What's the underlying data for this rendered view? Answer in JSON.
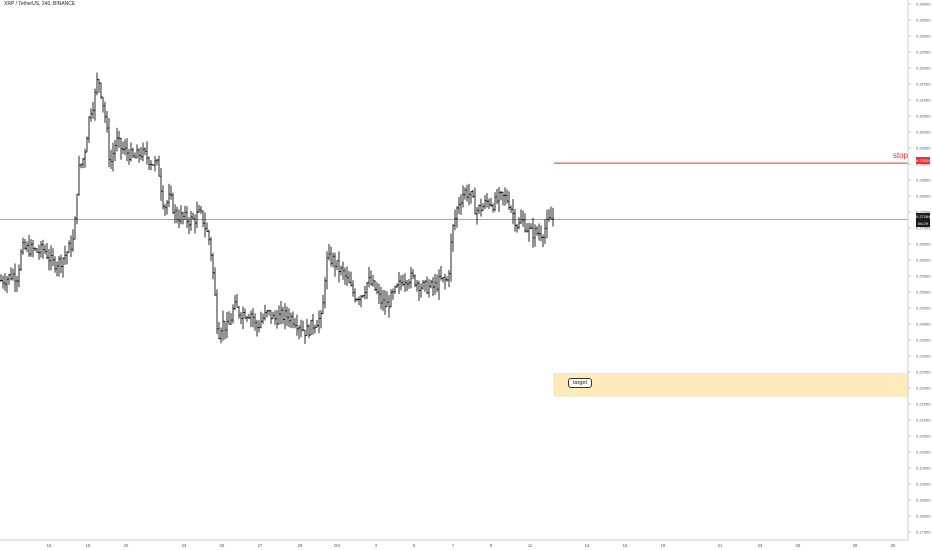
{
  "header": {
    "title": "XRP / TetherUS, 240, BINANCE"
  },
  "chart_data": {
    "type": "ohlc",
    "ylim": [
      0.1725,
      0.3405
    ],
    "y_axis_ticks": [
      "0.34000",
      "0.33500",
      "0.33000",
      "0.32500",
      "0.32000",
      "0.31500",
      "0.31000",
      "0.30500",
      "0.30000",
      "0.29500",
      "0.29000",
      "0.28500",
      "0.28000",
      "0.27500",
      "0.27000",
      "0.26500",
      "0.26000",
      "0.25500",
      "0.25000",
      "0.24500",
      "0.24000",
      "0.23500",
      "0.23000",
      "0.22500",
      "0.22000",
      "0.21500",
      "0.21000",
      "0.20500",
      "0.20000",
      "0.19500",
      "0.19000",
      "0.18500",
      "0.18000",
      "0.17500"
    ],
    "x_axis_ticks": [
      "16",
      "18",
      "20",
      "23",
      "25",
      "27",
      "29",
      "Oct",
      "3",
      "5",
      "7",
      "9",
      "11",
      "14",
      "16",
      "18",
      "21",
      "23",
      "25",
      "28",
      "30"
    ],
    "price_path": [
      [
        0,
        0.2535
      ],
      [
        8,
        0.2545
      ],
      [
        12,
        0.2555
      ],
      [
        17,
        0.255
      ],
      [
        22,
        0.2635
      ],
      [
        30,
        0.2635
      ],
      [
        38,
        0.2625
      ],
      [
        44,
        0.2635
      ],
      [
        52,
        0.259
      ],
      [
        60,
        0.2595
      ],
      [
        67,
        0.2625
      ],
      [
        74,
        0.2665
      ],
      [
        78,
        0.2875
      ],
      [
        84,
        0.2925
      ],
      [
        90,
        0.3065
      ],
      [
        94,
        0.3095
      ],
      [
        98,
        0.3175
      ],
      [
        102,
        0.311
      ],
      [
        106,
        0.303
      ],
      [
        110,
        0.2895
      ],
      [
        116,
        0.2975
      ],
      [
        122,
        0.2945
      ],
      [
        128,
        0.2935
      ],
      [
        134,
        0.2915
      ],
      [
        140,
        0.2935
      ],
      [
        146,
        0.2925
      ],
      [
        152,
        0.2905
      ],
      [
        158,
        0.2895
      ],
      [
        164,
        0.2765
      ],
      [
        170,
        0.2795
      ],
      [
        176,
        0.2735
      ],
      [
        182,
        0.2735
      ],
      [
        188,
        0.2725
      ],
      [
        194,
        0.2725
      ],
      [
        198,
        0.2745
      ],
      [
        202,
        0.2735
      ],
      [
        206,
        0.2695
      ],
      [
        210,
        0.2655
      ],
      [
        214,
        0.2525
      ],
      [
        218,
        0.2365
      ],
      [
        222,
        0.2405
      ],
      [
        228,
        0.2385
      ],
      [
        234,
        0.2455
      ],
      [
        240,
        0.2435
      ],
      [
        246,
        0.2435
      ],
      [
        252,
        0.2435
      ],
      [
        256,
        0.2385
      ],
      [
        262,
        0.2415
      ],
      [
        268,
        0.2435
      ],
      [
        274,
        0.2415
      ],
      [
        280,
        0.2425
      ],
      [
        288,
        0.2425
      ],
      [
        294,
        0.2415
      ],
      [
        300,
        0.2395
      ],
      [
        306,
        0.2375
      ],
      [
        312,
        0.2395
      ],
      [
        318,
        0.2415
      ],
      [
        322,
        0.2415
      ],
      [
        326,
        0.2595
      ],
      [
        332,
        0.2605
      ],
      [
        338,
        0.2575
      ],
      [
        344,
        0.2555
      ],
      [
        350,
        0.2515
      ],
      [
        356,
        0.2485
      ],
      [
        362,
        0.2495
      ],
      [
        368,
        0.2535
      ],
      [
        374,
        0.2515
      ],
      [
        380,
        0.2475
      ],
      [
        386,
        0.2455
      ],
      [
        392,
        0.2485
      ],
      [
        398,
        0.2515
      ],
      [
        404,
        0.2545
      ],
      [
        410,
        0.2545
      ],
      [
        416,
        0.2535
      ],
      [
        422,
        0.2515
      ],
      [
        428,
        0.2515
      ],
      [
        434,
        0.2515
      ],
      [
        440,
        0.2535
      ],
      [
        448,
        0.2535
      ],
      [
        452,
        0.2685
      ],
      [
        458,
        0.2775
      ],
      [
        464,
        0.2815
      ],
      [
        470,
        0.2805
      ],
      [
        476,
        0.2755
      ],
      [
        482,
        0.2765
      ],
      [
        488,
        0.2785
      ],
      [
        494,
        0.2775
      ],
      [
        500,
        0.2795
      ],
      [
        506,
        0.2795
      ],
      [
        510,
        0.2775
      ],
      [
        514,
        0.2735
      ],
      [
        518,
        0.2705
      ],
      [
        522,
        0.2725
      ],
      [
        526,
        0.2705
      ],
      [
        530,
        0.2685
      ],
      [
        536,
        0.2685
      ],
      [
        542,
        0.2685
      ],
      [
        546,
        0.2705
      ],
      [
        550,
        0.2725
      ],
      [
        554,
        0.2735
      ]
    ],
    "horizontal_lines": [
      {
        "name": "last-price-line",
        "price": 0.27264,
        "color": "#888888"
      },
      {
        "name": "stop-line",
        "price": 0.29029,
        "color": "#e8322f"
      }
    ],
    "target_zone": {
      "low": 0.2175,
      "high": 0.2245,
      "color": "#fde9b4"
    },
    "annotations": {
      "stop": "stop",
      "target": "target"
    },
    "price_labels": {
      "stop": "0.29029",
      "last": "0.27264",
      "countdown": "06:29"
    }
  }
}
